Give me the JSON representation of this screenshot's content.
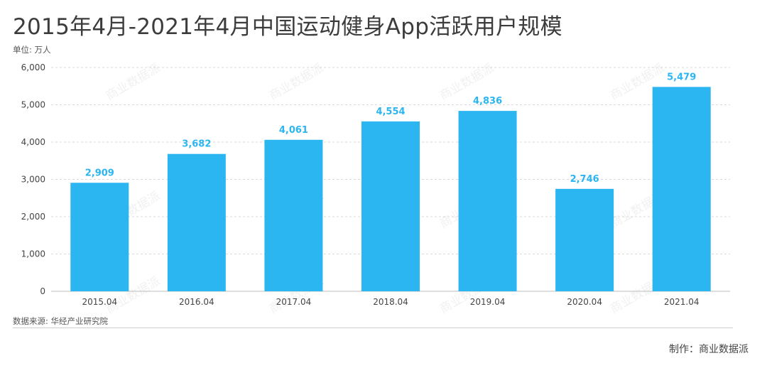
{
  "title": "2015年4月-2021年4月中国运动健身App活跃用户规模",
  "unit_label": "单位: 万人",
  "source_label": "数据来源: 华经产业研究院",
  "credit_label": "制作：商业数据派",
  "watermark_text": "商业数据派",
  "colors": {
    "bar": "#2bb5f1",
    "data_label": "#2bb5f1",
    "grid": "#d9d9d9",
    "axis_text": "#444444"
  },
  "chart_data": {
    "type": "bar",
    "title": "2015年4月-2021年4月中国运动健身App活跃用户规模",
    "ylabel": "单位: 万人",
    "categories": [
      "2015.04",
      "2016.04",
      "2017.04",
      "2018.04",
      "2019.04",
      "2020.04",
      "2021.04"
    ],
    "values": [
      2909,
      3682,
      4061,
      4554,
      4836,
      2746,
      5479
    ],
    "data_labels": [
      "2,909",
      "3,682",
      "4,061",
      "4,554",
      "4,836",
      "2,746",
      "5,479"
    ],
    "yticks": [
      "0",
      "1,000",
      "2,000",
      "3,000",
      "4,000",
      "5,000",
      "6,000"
    ],
    "ylim": [
      0,
      6000
    ],
    "grid": true,
    "legend": "none"
  }
}
